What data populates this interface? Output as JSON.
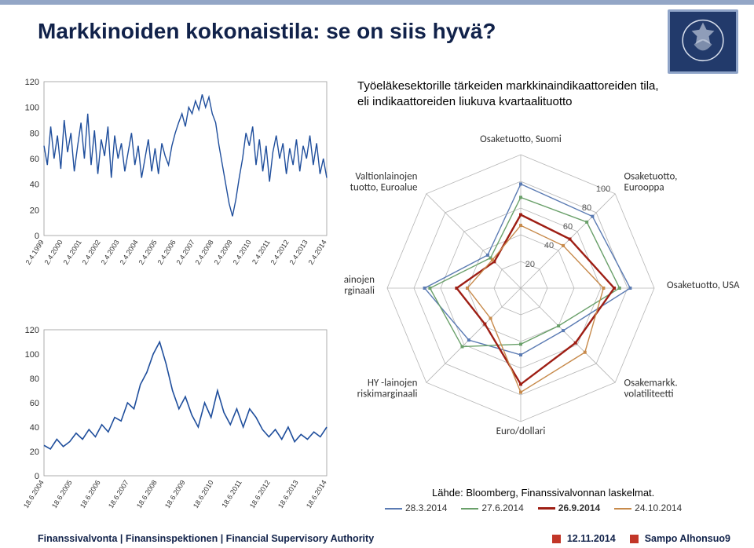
{
  "header": {
    "title": "Markkinoiden kokonaistila: se on siis hyvä?"
  },
  "description": {
    "line1": "Työeläkesektorille tärkeiden markkinaindikaattoreiden tila,",
    "line2": "eli indikaattoreiden liukuva kvartaalituotto"
  },
  "source": "Lähde: Bloomberg, Finanssivalvonnan laskelmat.",
  "top_chart": {
    "ylim": [
      0,
      120
    ],
    "ystep": 20,
    "yticks": [
      0,
      20,
      40,
      60,
      80,
      100,
      120
    ],
    "xticks": [
      "2.4.1999",
      "2.4.2000",
      "2.4.2001",
      "2.4.2002",
      "2.4.2003",
      "2.4.2004",
      "2.4.2005",
      "2.4.2006",
      "2.4.2007",
      "2.4.2008",
      "2.4.2009",
      "2.4.2010",
      "2.4.2011",
      "2.4.2012",
      "2.4.2013",
      "2.4.2014"
    ],
    "line_color": "#1f4e9c",
    "line_width": 1.4,
    "plot_bg": "#ffffff",
    "border": "#999999",
    "series": [
      70,
      55,
      85,
      60,
      78,
      52,
      90,
      65,
      80,
      50,
      70,
      88,
      60,
      95,
      55,
      82,
      48,
      75,
      62,
      85,
      45,
      78,
      60,
      72,
      50,
      65,
      80,
      55,
      70,
      45,
      60,
      75,
      50,
      68,
      48,
      72,
      62,
      55,
      70,
      80,
      88,
      95,
      85,
      100,
      95,
      105,
      98,
      110,
      100,
      108,
      95,
      88,
      70,
      55,
      40,
      25,
      15,
      28,
      45,
      60,
      80,
      70,
      85,
      55,
      75,
      50,
      70,
      42,
      65,
      78,
      60,
      72,
      48,
      68,
      55,
      75,
      50,
      70,
      60,
      78,
      55,
      72,
      48,
      60,
      45
    ]
  },
  "bottom_chart": {
    "ylim": [
      0,
      120
    ],
    "ystep": 20,
    "yticks": [
      0,
      20,
      40,
      60,
      80,
      100,
      120
    ],
    "xticks": [
      "18.6.2004",
      "18.6.2005",
      "18.6.2006",
      "18.6.2007",
      "18.6.2008",
      "18.6.2009",
      "18.6.2010",
      "18.6.2011",
      "18.6.2012",
      "18.6.2013",
      "18.6.2014"
    ],
    "line_color": "#1f4e9c",
    "line_width": 1.6,
    "plot_bg": "#ffffff",
    "border": "#999999",
    "series": [
      25,
      22,
      30,
      24,
      28,
      35,
      30,
      38,
      32,
      42,
      36,
      48,
      45,
      60,
      55,
      75,
      85,
      100,
      110,
      92,
      70,
      55,
      65,
      50,
      40,
      60,
      48,
      70,
      52,
      42,
      55,
      40,
      55,
      48,
      38,
      32,
      38,
      30,
      40,
      28,
      34,
      30,
      36,
      32,
      40
    ]
  },
  "radar": {
    "rings": [
      20,
      40,
      60,
      80,
      100
    ],
    "ring_color": "#b5b5b5",
    "spoke_color": "#b5b5b5",
    "labels": [
      "Osaketuotto, Suomi",
      "Osaketuotto,\nEurooppa",
      "Osaketuotto, USA",
      "Osakemarkk.\nvolatiliteetti",
      "Euro/dollari",
      "HY -lainojen\nriskimarginaali",
      "IG -lainojen\nriskimarginaali",
      "Valtionlainojen\ntuotto, Euroalue"
    ],
    "series": [
      {
        "name": "28.3.2014",
        "color": "#5b7bb3",
        "width": 1.4,
        "vals": [
          78,
          76,
          82,
          45,
          50,
          55,
          72,
          35
        ]
      },
      {
        "name": "27.6.2014",
        "color": "#6aa06a",
        "width": 1.4,
        "vals": [
          68,
          70,
          74,
          40,
          42,
          62,
          68,
          32
        ]
      },
      {
        "name": "26.9.2014",
        "color": "#9e1e14",
        "width": 2.4,
        "vals": [
          55,
          52,
          70,
          58,
          72,
          38,
          48,
          28
        ]
      },
      {
        "name": "24.10.2014",
        "color": "#c78a4b",
        "width": 1.4,
        "vals": [
          47,
          45,
          62,
          68,
          78,
          32,
          40,
          30
        ]
      }
    ]
  },
  "legend": [
    {
      "label": "28.3.2014",
      "color": "#5b7bb3"
    },
    {
      "label": "27.6.2014",
      "color": "#6aa06a"
    },
    {
      "label": "26.9.2014",
      "color": "#9e1e14"
    },
    {
      "label": "24.10.2014",
      "color": "#c78a4b"
    }
  ],
  "footer": {
    "left": "Finanssivalvonta | Finansinspektionen | Financial Supervisory Authority",
    "date": "12.11.2014",
    "author": "Sampo Alhonsuo",
    "page": "9"
  }
}
